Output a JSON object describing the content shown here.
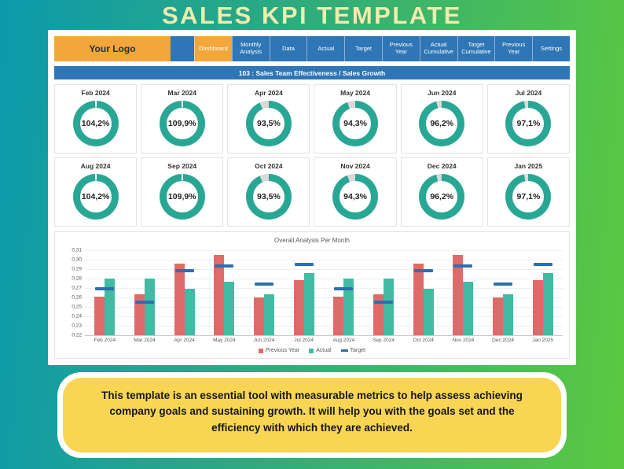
{
  "page": {
    "title": "SALES KPI TEMPLATE"
  },
  "nav": {
    "logo_label": "Your Logo",
    "tabs": [
      {
        "label": "Dashboard",
        "active": true
      },
      {
        "label": "Monthly Analysis",
        "active": false
      },
      {
        "label": "Data",
        "active": false
      },
      {
        "label": "Actual",
        "active": false
      },
      {
        "label": "Target",
        "active": false
      },
      {
        "label": "Previous Year",
        "active": false
      },
      {
        "label": "Actual Cumulative",
        "active": false
      },
      {
        "label": "Target Cumulative",
        "active": false
      },
      {
        "label": "Previous Year",
        "active": false
      },
      {
        "label": "Settings",
        "active": false
      }
    ]
  },
  "section_header": {
    "title": "103 : Sales Team Effectiveness / Sales Growth"
  },
  "gauges": [
    {
      "month": "Feb 2024",
      "value_label": "104,2%",
      "percent": 104.2
    },
    {
      "month": "Mar 2024",
      "value_label": "109,9%",
      "percent": 109.9
    },
    {
      "month": "Apr 2024",
      "value_label": "93,5%",
      "percent": 93.5
    },
    {
      "month": "May 2024",
      "value_label": "94,3%",
      "percent": 94.3
    },
    {
      "month": "Jun 2024",
      "value_label": "96,2%",
      "percent": 96.2
    },
    {
      "month": "Jul 2024",
      "value_label": "97,1%",
      "percent": 97.1
    },
    {
      "month": "Aug 2024",
      "value_label": "104,2%",
      "percent": 104.2
    },
    {
      "month": "Sep 2024",
      "value_label": "109,9%",
      "percent": 109.9
    },
    {
      "month": "Oct 2024",
      "value_label": "93,5%",
      "percent": 93.5
    },
    {
      "month": "Nov 2024",
      "value_label": "94,3%",
      "percent": 94.3
    },
    {
      "month": "Dec 2024",
      "value_label": "96,2%",
      "percent": 96.2
    },
    {
      "month": "Jan 2025",
      "value_label": "97,1%",
      "percent": 97.1
    }
  ],
  "chart_data": {
    "type": "bar",
    "title": "Overall Analysis Per Month",
    "categories": [
      "Feb 2024",
      "Mar 2024",
      "Apr 2024",
      "May 2024",
      "Jun 2024",
      "Jul 2024",
      "Aug 2024",
      "Sep 2024",
      "Oct 2024",
      "Nov 2024",
      "Dec 2024",
      "Jan 2025"
    ],
    "series": [
      {
        "name": "Previous Year",
        "marker": "square",
        "color": "#DD6B69",
        "values": [
          0.261,
          0.263,
          0.296,
          0.305,
          0.26,
          0.278,
          0.261,
          0.263,
          0.296,
          0.305,
          0.26,
          0.278
        ]
      },
      {
        "name": "Actual",
        "marker": "square",
        "color": "#41BCA3",
        "values": [
          0.28,
          0.28,
          0.269,
          0.277,
          0.263,
          0.286,
          0.28,
          0.28,
          0.269,
          0.277,
          0.263,
          0.286
        ]
      },
      {
        "name": "Target",
        "marker": "dash",
        "color": "#2D6FAE",
        "values": [
          0.269,
          0.255,
          0.288,
          0.293,
          0.274,
          0.295,
          0.269,
          0.255,
          0.288,
          0.293,
          0.274,
          0.295
        ]
      }
    ],
    "ylim": [
      0.22,
      0.31
    ],
    "ytick_step": 0.01,
    "ytick_labels": [
      "0,31",
      "0,30",
      "0,29",
      "0,28",
      "0,27",
      "0,26",
      "0,25",
      "0,24",
      "0,23",
      "0,22"
    ],
    "grid": true,
    "legend_position": "bottom"
  },
  "footer": {
    "description": "This template is an essential tool with measurable metrics to help assess achieving company goals and sustaining growth. It will help you with the goals set and the efficiency with which they are achieved."
  },
  "colors": {
    "background_left": "#0C9AAC",
    "background_right": "#5BC93F",
    "title_yellow": "#F0ECAE",
    "nav_blue": "#2E76B5",
    "accent_orange": "#F3A63B",
    "donut_teal": "#29A795",
    "donut_rest": "#D9D9D9",
    "bar_red": "#DD6B69",
    "bar_teal": "#41BCA3",
    "target_blue": "#2D6FAE",
    "footer_yellow": "#F8D654"
  }
}
